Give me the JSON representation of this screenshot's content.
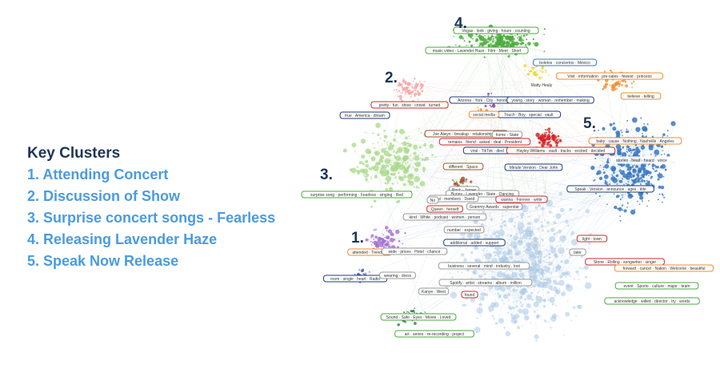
{
  "legend": {
    "heading": "Key Clusters",
    "items": [
      "1. Attending Concert",
      "2. Discussion of Show",
      "3. Surprise concert songs - Fearless",
      "4. Releasing Lavender Haze",
      "5. Speak Now Release"
    ]
  },
  "cluster_numbers": [
    "4.",
    "2.",
    "3.",
    "5.",
    "1."
  ],
  "colors": {
    "heading": "#1d3557",
    "legend_items": "#4a9be0",
    "cluster_1": "#a66fd6",
    "cluster_2": "#f2a0a0",
    "cluster_3": "#a8d88a",
    "cluster_4": "#4aaa3c",
    "cluster_5": "#3a78c2",
    "core": "#a9c8e6",
    "red": "#d62728",
    "orange": "#f08c2c"
  },
  "graph_labels": [
    {
      "text": "Vegas · look · giving · hours · counting",
      "color": "green"
    },
    {
      "text": "music video · Lavender Haze · Film · Meet · Short",
      "color": "green"
    },
    {
      "text": "boletos · conciertos · México",
      "color": "blue"
    },
    {
      "text": "Visit · information · pre-sales · fewest · princess",
      "color": "orange"
    },
    {
      "text": "Matty Healy",
      "color": "none"
    },
    {
      "text": "believe · telling",
      "color": "orange"
    },
    {
      "text": "Arizona · York · City · honor · Glendale",
      "color": "navy"
    },
    {
      "text": "young · story · woman · remember · making",
      "color": "navy"
    },
    {
      "text": "pretty · fun · show · crowd · turned",
      "color": "red"
    },
    {
      "text": "Touch · Boy · special · vault",
      "color": "navy"
    },
    {
      "text": "true · America · dream",
      "color": "navy"
    },
    {
      "text": "social media",
      "color": "orange"
    },
    {
      "text": "Joe Alwyn · breakup · relationship · re",
      "color": "brown"
    },
    {
      "text": "home · State",
      "color": "grey"
    },
    {
      "text": "remains · friend · asked · deal · President",
      "color": "red"
    },
    {
      "text": "baby · cause · Nothing · Nashville · Angeles",
      "color": "orange"
    },
    {
      "text": "viral · TikTok · died",
      "color": "navy"
    },
    {
      "text": "Hayley Williams · vault · tracks · excited · decided",
      "color": "red"
    },
    {
      "text": "stories · head · heard · voice",
      "color": "none"
    },
    {
      "text": "different · Space",
      "color": "brown"
    },
    {
      "text": "Minute Version · Dear John",
      "color": "navy"
    },
    {
      "text": "Rock · James",
      "color": "grey"
    },
    {
      "text": "Bunny · Lavender · State · Dancing",
      "color": "grey"
    },
    {
      "text": "Paul · members · David",
      "color": "grey"
    },
    {
      "text": "No",
      "color": "grey"
    },
    {
      "text": "wanna · Forever · write",
      "color": "red"
    },
    {
      "text": "Speak · Version · announce · ages · title",
      "color": "navy"
    },
    {
      "text": "surprise song · performing · Fearless · singing · Red",
      "color": "green"
    },
    {
      "text": "Grammy Awards · superstar",
      "color": "grey"
    },
    {
      "text": "Queen · herself",
      "color": "red"
    },
    {
      "text": "kind · White · podcast · women · person",
      "color": "grey"
    },
    {
      "text": "number · expected",
      "color": "grey"
    },
    {
      "text": "additional · added · support",
      "color": "navy"
    },
    {
      "text": "light · town",
      "color": "red"
    },
    {
      "text": "attended · Trending",
      "color": "orange"
    },
    {
      "text": "wide · prices · Hotel · chance",
      "color": "grey"
    },
    {
      "text": "later",
      "color": "grey"
    },
    {
      "text": "Stone · Rolling · songwriter · singer",
      "color": "red"
    },
    {
      "text": "forward · cancel · Nation · Welcome · beautiful",
      "color": "orange"
    },
    {
      "text": "business · several · mind · industry · lost",
      "color": "grey"
    },
    {
      "text": "event · Sports · culture · major · team",
      "color": "green"
    },
    {
      "text": "room · single · heart · Radio",
      "color": "navy"
    },
    {
      "text": "wearing · dress",
      "color": "grey"
    },
    {
      "text": "Spotify · artist · streams · album · million",
      "color": "grey"
    },
    {
      "text": "Kanye · West",
      "color": "grey"
    },
    {
      "text": "found",
      "color": "red"
    },
    {
      "text": "acknowledge · willed · director · try · words",
      "color": "green"
    },
    {
      "text": "Sound · Safe · Eyes · Movie · Loved",
      "color": "green"
    },
    {
      "text": "art · series · re-recording · project",
      "color": "green"
    }
  ]
}
